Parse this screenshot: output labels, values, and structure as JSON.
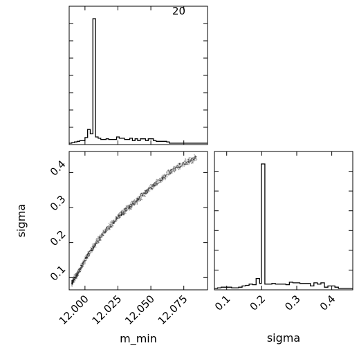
{
  "chart_data": [
    {
      "type": "histogram",
      "panel": "m_min-marginal",
      "xlim": [
        11.988,
        12.093
      ],
      "annotation": "20",
      "bins": [
        [
          11.988,
          11.99,
          0.0
        ],
        [
          11.99,
          11.992,
          0.5
        ],
        [
          11.992,
          11.994,
          1.0
        ],
        [
          11.994,
          11.996,
          1.5
        ],
        [
          11.996,
          11.998,
          2.0
        ],
        [
          11.998,
          12.0,
          2.0
        ],
        [
          12.0,
          12.002,
          4.5
        ],
        [
          12.002,
          12.004,
          11.0
        ],
        [
          12.004,
          12.006,
          7.5
        ],
        [
          12.006,
          12.008,
          100.0
        ],
        [
          12.008,
          12.01,
          5.0
        ],
        [
          12.01,
          12.012,
          4.0
        ],
        [
          12.012,
          12.014,
          3.0
        ],
        [
          12.014,
          12.016,
          3.0
        ],
        [
          12.016,
          12.018,
          3.5
        ],
        [
          12.018,
          12.02,
          3.0
        ],
        [
          12.02,
          12.022,
          3.0
        ],
        [
          12.022,
          12.024,
          3.0
        ],
        [
          12.024,
          12.026,
          5.0
        ],
        [
          12.026,
          12.028,
          4.0
        ],
        [
          12.028,
          12.03,
          4.0
        ],
        [
          12.03,
          12.032,
          3.0
        ],
        [
          12.032,
          12.034,
          3.0
        ],
        [
          12.034,
          12.036,
          4.0
        ],
        [
          12.036,
          12.038,
          2.0
        ],
        [
          12.038,
          12.04,
          3.5
        ],
        [
          12.04,
          12.042,
          2.0
        ],
        [
          12.042,
          12.044,
          3.5
        ],
        [
          12.044,
          12.046,
          3.5
        ],
        [
          12.046,
          12.048,
          2.0
        ],
        [
          12.048,
          12.05,
          3.5
        ],
        [
          12.05,
          12.052,
          3.5
        ],
        [
          12.052,
          12.054,
          2.0
        ],
        [
          12.054,
          12.056,
          1.5
        ],
        [
          12.056,
          12.058,
          1.5
        ],
        [
          12.058,
          12.06,
          1.5
        ],
        [
          12.06,
          12.062,
          1.5
        ],
        [
          12.062,
          12.064,
          1.0
        ],
        [
          12.064,
          12.066,
          0.0
        ]
      ]
    },
    {
      "type": "histogram",
      "panel": "sigma-marginal",
      "xlabel": "sigma",
      "xlim": [
        0.065,
        0.46
      ],
      "xticks": [
        0.1,
        0.2,
        0.3,
        0.4
      ],
      "bins": [
        [
          0.065,
          0.074,
          0.0
        ],
        [
          0.074,
          0.084,
          0.5
        ],
        [
          0.084,
          0.094,
          1.0
        ],
        [
          0.094,
          0.104,
          1.0
        ],
        [
          0.104,
          0.114,
          1.0
        ],
        [
          0.114,
          0.124,
          0.5
        ],
        [
          0.124,
          0.134,
          0.5
        ],
        [
          0.134,
          0.144,
          1.0
        ],
        [
          0.144,
          0.154,
          2.0
        ],
        [
          0.154,
          0.164,
          2.5
        ],
        [
          0.164,
          0.174,
          3.5
        ],
        [
          0.174,
          0.184,
          3.0
        ],
        [
          0.184,
          0.194,
          8.0
        ],
        [
          0.194,
          0.199,
          4.0
        ],
        [
          0.199,
          0.209,
          100.0
        ],
        [
          0.209,
          0.219,
          3.5
        ],
        [
          0.219,
          0.229,
          3.5
        ],
        [
          0.229,
          0.239,
          4.0
        ],
        [
          0.239,
          0.249,
          3.5
        ],
        [
          0.249,
          0.259,
          3.5
        ],
        [
          0.259,
          0.269,
          3.5
        ],
        [
          0.269,
          0.279,
          3.0
        ],
        [
          0.279,
          0.289,
          5.0
        ],
        [
          0.289,
          0.299,
          4.5
        ],
        [
          0.299,
          0.309,
          4.5
        ],
        [
          0.309,
          0.319,
          4.0
        ],
        [
          0.319,
          0.329,
          4.0
        ],
        [
          0.329,
          0.339,
          4.0
        ],
        [
          0.339,
          0.349,
          2.0
        ],
        [
          0.349,
          0.359,
          4.5
        ],
        [
          0.359,
          0.369,
          3.5
        ],
        [
          0.369,
          0.379,
          4.5
        ],
        [
          0.379,
          0.389,
          1.0
        ],
        [
          0.389,
          0.399,
          2.0
        ],
        [
          0.399,
          0.409,
          2.0
        ],
        [
          0.409,
          0.419,
          1.0
        ],
        [
          0.419,
          0.429,
          0.0
        ]
      ]
    },
    {
      "type": "scatter",
      "panel": "m_min-vs-sigma",
      "xlabel": "m_min",
      "ylabel": "sigma",
      "xlim": [
        11.988,
        12.093
      ],
      "ylim": [
        0.065,
        0.46
      ],
      "xticks": [
        12.0,
        12.025,
        12.05,
        12.075
      ],
      "xtick_labels": [
        "12.000",
        "12.025",
        "12.050",
        "12.075"
      ],
      "yticks": [
        0.1,
        0.2,
        0.3,
        0.4
      ],
      "trend": [
        [
          11.99,
          0.085
        ],
        [
          11.995,
          0.115
        ],
        [
          12.0,
          0.15
        ],
        [
          12.005,
          0.18
        ],
        [
          12.01,
          0.208
        ],
        [
          12.015,
          0.232
        ],
        [
          12.02,
          0.252
        ],
        [
          12.025,
          0.272
        ],
        [
          12.03,
          0.29
        ],
        [
          12.035,
          0.306
        ],
        [
          12.04,
          0.322
        ],
        [
          12.045,
          0.34
        ],
        [
          12.05,
          0.356
        ],
        [
          12.055,
          0.372
        ],
        [
          12.06,
          0.388
        ],
        [
          12.065,
          0.402
        ],
        [
          12.07,
          0.415
        ],
        [
          12.075,
          0.426
        ],
        [
          12.08,
          0.435
        ],
        [
          12.085,
          0.442
        ]
      ],
      "spread": 0.009,
      "point_color": "#000000"
    }
  ]
}
